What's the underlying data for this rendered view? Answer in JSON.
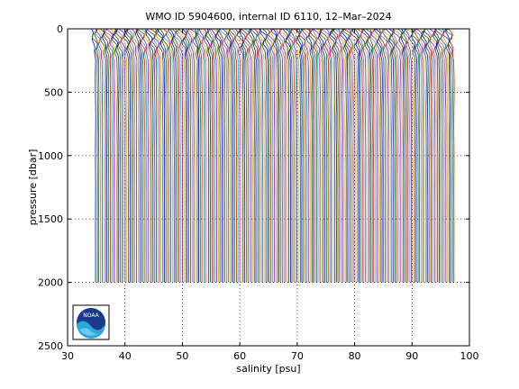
{
  "chart_data": {
    "type": "line",
    "title": "WMO ID 5904600, internal ID 6110, 12–Mar–2024",
    "xlabel": "salinity [psu]",
    "ylabel": "pressure [dbar]",
    "xlim": [
      30,
      100
    ],
    "ylim": [
      2500,
      0
    ],
    "y_reversed": true,
    "xticks": [
      "30",
      "40",
      "50",
      "60",
      "70",
      "80",
      "90",
      "100"
    ],
    "yticks": [
      "0",
      "500",
      "1000",
      "1500",
      "2000",
      "2500"
    ],
    "grid": "dotted",
    "profiles": {
      "count": 220,
      "first_offset_psu": 34.9,
      "offset_step_psu": 0.285,
      "pressure_range": [
        0,
        2000
      ],
      "surface_excursion_psu": 1.2,
      "colors": [
        "#0000ff",
        "#008000",
        "#ff0000",
        "#00bfbf",
        "#bf00bf",
        "#bfbf00",
        "#404040"
      ]
    },
    "logo": "noaa-logo"
  }
}
